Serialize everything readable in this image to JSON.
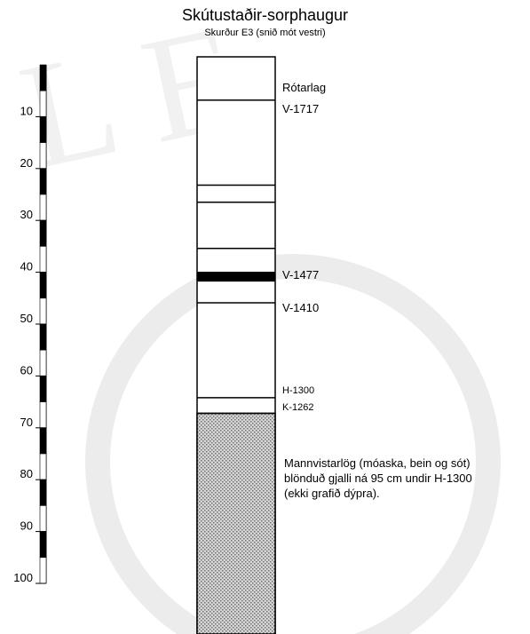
{
  "title": "Skútustaðir-sorphaugur",
  "subtitle": "Skurður E3 (snið mót vestri)",
  "depth_scale": {
    "ticks": [
      "10",
      "20",
      "30",
      "40",
      "50",
      "60",
      "70",
      "80",
      "90",
      "100"
    ],
    "max_depth": 100
  },
  "layers": {
    "labels": [
      {
        "text": "Rótarlag",
        "depth": 4.5
      },
      {
        "text": "V-1717",
        "depth": 8.5
      },
      {
        "text": "V-1477",
        "depth": 40.5
      },
      {
        "text": "V-1410",
        "depth": 47
      },
      {
        "text": "H-1300",
        "depth": 63
      },
      {
        "text": "K-1262",
        "depth": 66.3
      }
    ],
    "boundaries": [
      6.8,
      23.2,
      26.5,
      35.4,
      45.9,
      64.2,
      67.2
    ],
    "tephra_band": [
      39.9,
      41.8
    ],
    "hatched_from": 67.2,
    "note": [
      "Mannvistarlög (móaska, bein og sót)",
      "blönduð gjalli ná 95 cm undir H-1300",
      "(ekki grafið dýpra)."
    ]
  },
  "colors": {
    "line": "#000000",
    "hatch_dark": "#7a7a7a",
    "hatch_light": "#cfcfcf",
    "watermark": "#e6e6e6"
  }
}
